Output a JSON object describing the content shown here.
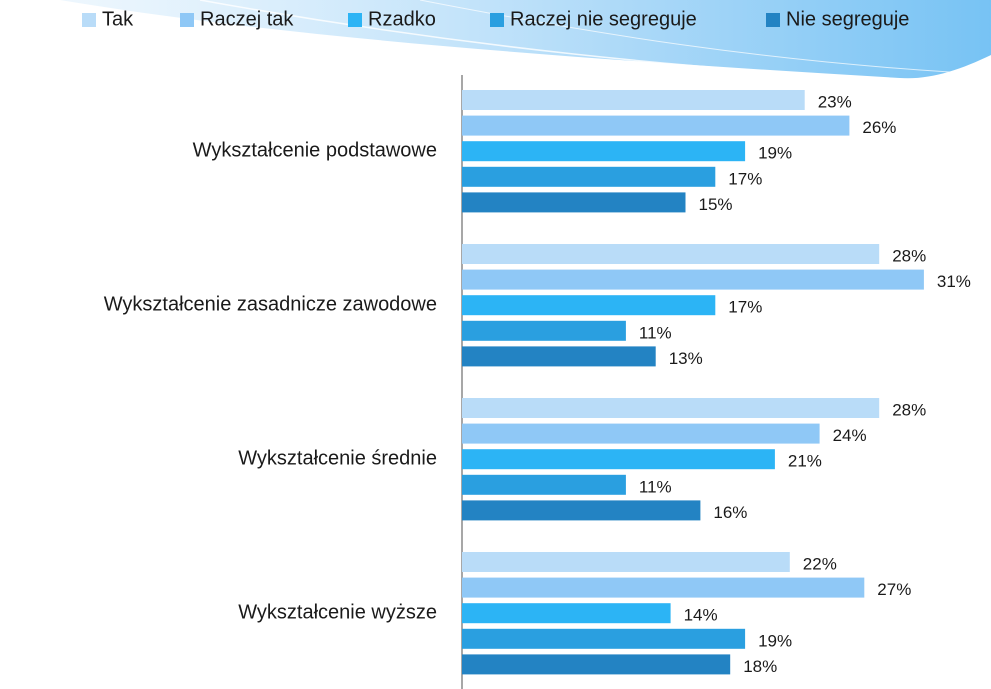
{
  "chart_data": {
    "type": "bar",
    "orientation": "horizontal",
    "categories": [
      "Wykształcenie podstawowe",
      "Wykształcenie zasadnicze zawodowe",
      "Wykształcenie średnie",
      "Wykształcenie wyższe"
    ],
    "series": [
      {
        "name": "Tak",
        "color": "#b9dcf8",
        "values": [
          23,
          28,
          28,
          22
        ],
        "value_labels": [
          "23%",
          "28%",
          "28%",
          "22%"
        ]
      },
      {
        "name": "Raczej tak",
        "color": "#8fc8f6",
        "values": [
          26,
          31,
          24,
          27
        ],
        "value_labels": [
          "26%",
          "31%",
          "24%",
          "27%"
        ]
      },
      {
        "name": "Rzadko",
        "color": "#2cb4f5",
        "values": [
          19,
          17,
          21,
          14
        ],
        "value_labels": [
          "19%",
          "17%",
          "21%",
          "14%"
        ]
      },
      {
        "name": "Raczej nie segreguje",
        "color": "#2a9fe0",
        "values": [
          17,
          11,
          11,
          19
        ],
        "value_labels": [
          "17%",
          "11%",
          "11%",
          "19%"
        ]
      },
      {
        "name": "Nie segreguje",
        "color": "#2383c3",
        "values": [
          15,
          13,
          16,
          18
        ],
        "value_labels": [
          "15%",
          "13%",
          "16%",
          "18%"
        ]
      }
    ],
    "legend": "top"
  }
}
